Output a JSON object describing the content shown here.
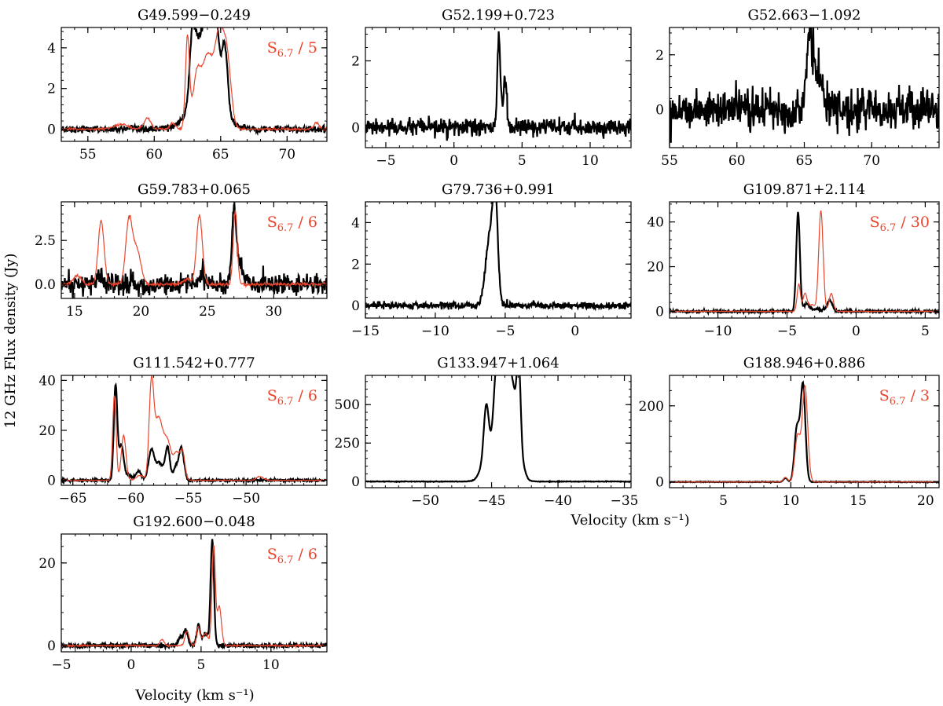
{
  "figure": {
    "ylabel": "12 GHz Flux density (Jy)",
    "xlabel": "Velocity (km s⁻¹)",
    "series_colors": {
      "spec12": "#000000",
      "spec67": "#e8452c"
    }
  },
  "chart_data": [
    {
      "type": "line",
      "title": "G49.599−0.249",
      "xlim": [
        53,
        73
      ],
      "ylim": [
        -0.6,
        5.0
      ],
      "xticks": [
        55,
        60,
        65,
        70
      ],
      "xtick_labels": [
        "55",
        "60",
        "65",
        "70"
      ],
      "yticks": [
        0,
        2,
        4
      ],
      "ytick_labels": [
        "0",
        "2",
        "4"
      ],
      "annotation": {
        "base": "S",
        "sub": "6.7",
        "rest": " / 5"
      },
      "series": [
        {
          "name": "12.2 GHz",
          "color": "#000000",
          "noise": 0.08,
          "baseline": 0,
          "peaks": [
            [
              62.9,
              3.7,
              0.22
            ],
            [
              63.5,
              2.6,
              0.3
            ],
            [
              64.1,
              4.5,
              0.25
            ],
            [
              64.6,
              4.3,
              0.25
            ],
            [
              65.3,
              3.3,
              0.22
            ],
            [
              63.9,
              2.0,
              1.1
            ]
          ]
        },
        {
          "name": "6.7 GHz / 5",
          "color": "#e8452c",
          "noise": 0.03,
          "baseline": 0,
          "peaks": [
            [
              59.5,
              0.55,
              0.25
            ],
            [
              62.5,
              4.5,
              0.15
            ],
            [
              63.2,
              2.5,
              0.3
            ],
            [
              64.0,
              3.5,
              0.4
            ],
            [
              64.9,
              4.4,
              0.35
            ],
            [
              65.5,
              3.0,
              0.3
            ],
            [
              57.5,
              0.25,
              0.5
            ],
            [
              61.4,
              0.3,
              0.2
            ],
            [
              72.2,
              0.3,
              0.2
            ]
          ]
        }
      ]
    },
    {
      "type": "line",
      "title": "G52.199+0.723",
      "xlim": [
        -6.5,
        13
      ],
      "ylim": [
        -0.6,
        3.0
      ],
      "xticks": [
        -5,
        0,
        5,
        10
      ],
      "xtick_labels": [
        "−5",
        "0",
        "5",
        "10"
      ],
      "yticks": [
        0,
        2
      ],
      "ytick_labels": [
        "0",
        "2"
      ],
      "series": [
        {
          "name": "12.2 GHz",
          "color": "#000000",
          "noise": 0.12,
          "baseline": 0,
          "peaks": [
            [
              3.3,
              2.6,
              0.12
            ],
            [
              3.75,
              1.5,
              0.12
            ]
          ]
        }
      ]
    },
    {
      "type": "line",
      "title": "G52.663−1.092",
      "xlim": [
        55,
        75
      ],
      "ylim": [
        -1.4,
        3.0
      ],
      "xticks": [
        55,
        60,
        65,
        70
      ],
      "xtick_labels": [
        "55",
        "60",
        "65",
        "70"
      ],
      "yticks": [
        0,
        2
      ],
      "ytick_labels": [
        "0",
        "2"
      ],
      "series": [
        {
          "name": "12.2 GHz",
          "color": "#000000",
          "noise": 0.35,
          "baseline": 0,
          "peaks": [
            [
              65.4,
              2.3,
              0.25
            ],
            [
              66.0,
              1.3,
              0.3
            ]
          ]
        }
      ]
    },
    {
      "type": "line",
      "title": "G59.783+0.065",
      "xlim": [
        14,
        34
      ],
      "ylim": [
        -0.8,
        4.7
      ],
      "xticks": [
        15,
        20,
        25,
        30
      ],
      "xtick_labels": [
        "15",
        "20",
        "25",
        "30"
      ],
      "yticks": [
        0,
        2.5
      ],
      "ytick_labels": [
        "0.0",
        "2.5"
      ],
      "annotation": {
        "base": "S",
        "sub": "6.7",
        "rest": " / 6"
      },
      "series": [
        {
          "name": "12.2 GHz",
          "color": "#000000",
          "noise": 0.3,
          "baseline": 0,
          "peaks": [
            [
              27.0,
              3.9,
              0.15
            ],
            [
              27.4,
              1.2,
              0.3
            ],
            [
              16.9,
              0.6,
              0.2
            ],
            [
              24.6,
              0.5,
              0.2
            ]
          ]
        },
        {
          "name": "6.7 GHz / 6",
          "color": "#e8452c",
          "noise": 0.05,
          "baseline": 0,
          "peaks": [
            [
              17.0,
              3.6,
              0.22
            ],
            [
              19.1,
              3.6,
              0.25
            ],
            [
              19.7,
              1.9,
              0.3
            ],
            [
              24.4,
              3.9,
              0.22
            ],
            [
              27.1,
              4.2,
              0.15
            ],
            [
              15.2,
              0.5,
              0.3
            ],
            [
              23.5,
              0.3,
              0.3
            ]
          ]
        }
      ]
    },
    {
      "type": "line",
      "title": "G79.736+0.991",
      "xlim": [
        -15,
        4
      ],
      "ylim": [
        -0.6,
        5.0
      ],
      "xticks": [
        -15,
        -10,
        -5,
        0
      ],
      "xtick_labels": [
        "−15",
        "−10",
        "−5",
        "0"
      ],
      "yticks": [
        0,
        2,
        4
      ],
      "ytick_labels": [
        "0",
        "2",
        "4"
      ],
      "series": [
        {
          "name": "12.2 GHz",
          "color": "#000000",
          "noise": 0.08,
          "baseline": 0,
          "peaks": [
            [
              -5.7,
              4.4,
              0.18
            ],
            [
              -6.1,
              3.3,
              0.3
            ]
          ]
        }
      ]
    },
    {
      "type": "line",
      "title": "G109.871+2.114",
      "xlim": [
        -13.5,
        6
      ],
      "ylim": [
        -3,
        49
      ],
      "xticks": [
        -10,
        -5,
        0,
        5
      ],
      "xtick_labels": [
        "−10",
        "−5",
        "0",
        "5"
      ],
      "yticks": [
        0,
        20,
        40
      ],
      "ytick_labels": [
        "0",
        "20",
        "40"
      ],
      "annotation": {
        "base": "S",
        "sub": "6.7",
        "rest": " / 30"
      },
      "series": [
        {
          "name": "12.2 GHz",
          "color": "#000000",
          "noise": 0.3,
          "baseline": 0,
          "peaks": [
            [
              -4.2,
              44.5,
              0.13
            ],
            [
              -3.6,
              3.5,
              0.2
            ],
            [
              -1.9,
              5.0,
              0.18
            ],
            [
              -2.8,
              1.0,
              0.3
            ]
          ]
        },
        {
          "name": "6.7 GHz / 30",
          "color": "#e8452c",
          "noise": 0.1,
          "baseline": 0,
          "peaks": [
            [
              -2.55,
              45.0,
              0.16
            ],
            [
              -4.15,
              12.0,
              0.12
            ],
            [
              -3.7,
              8.0,
              0.15
            ],
            [
              -1.8,
              8.0,
              0.15
            ],
            [
              -3.2,
              3.0,
              0.2
            ]
          ]
        }
      ]
    },
    {
      "type": "line",
      "title": "G111.542+0.777",
      "xlim": [
        -66,
        -43
      ],
      "ylim": [
        -2,
        42
      ],
      "xticks": [
        -65,
        -60,
        -55,
        -50
      ],
      "xtick_labels": [
        "−65",
        "−60",
        "−55",
        "−50"
      ],
      "yticks": [
        0,
        20,
        40
      ],
      "ytick_labels": [
        "0",
        "20",
        "40"
      ],
      "annotation": {
        "base": "S",
        "sub": "6.7",
        "rest": " / 6"
      },
      "series": [
        {
          "name": "12.2 GHz",
          "color": "#000000",
          "noise": 0.25,
          "baseline": 0,
          "peaks": [
            [
              -61.3,
              38,
              0.15
            ],
            [
              -60.8,
              14,
              0.2
            ],
            [
              -59.3,
              3.5,
              0.25
            ],
            [
              -58.2,
              12,
              0.25
            ],
            [
              -57.5,
              7,
              0.3
            ],
            [
              -56.8,
              13,
              0.2
            ],
            [
              -56.1,
              5,
              0.2
            ],
            [
              -55.6,
              13,
              0.22
            ],
            [
              -60.2,
              2,
              0.3
            ]
          ]
        },
        {
          "name": "6.7 GHz / 6",
          "color": "#e8452c",
          "noise": 0.1,
          "baseline": 0,
          "peaks": [
            [
              -61.4,
              34,
              0.15
            ],
            [
              -60.6,
              18,
              0.2
            ],
            [
              -58.2,
              36,
              0.2
            ],
            [
              -57.6,
              24,
              0.35
            ],
            [
              -56.8,
              15,
              0.35
            ],
            [
              -56.0,
              10,
              0.25
            ],
            [
              -55.5,
              11,
              0.2
            ],
            [
              -48.8,
              1.5,
              0.3
            ],
            [
              -59.2,
              2,
              0.3
            ]
          ]
        }
      ]
    },
    {
      "type": "line",
      "title": "G133.947+1.064",
      "xlim": [
        -54.5,
        -34.5
      ],
      "ylim": [
        -40,
        690
      ],
      "xticks": [
        -50,
        -45,
        -40,
        -35
      ],
      "xtick_labels": [
        "−50",
        "−45",
        "−40",
        "−35"
      ],
      "yticks": [
        0,
        250,
        500
      ],
      "ytick_labels": [
        "0",
        "250",
        "500"
      ],
      "series": [
        {
          "name": "12.2 GHz",
          "color": "#000000",
          "noise": 1.0,
          "baseline": 0,
          "peaks": [
            [
              -45.4,
              420,
              0.2
            ],
            [
              -44.6,
              560,
              0.25
            ],
            [
              -44.0,
              530,
              0.3
            ],
            [
              -43.4,
              470,
              0.3
            ],
            [
              -42.95,
              590,
              0.15
            ],
            [
              -42.6,
              60,
              0.2
            ],
            [
              -45.9,
              30,
              0.2
            ],
            [
              -44.3,
              200,
              0.8
            ]
          ]
        }
      ]
    },
    {
      "type": "line",
      "title": "G188.946+0.886",
      "xlim": [
        1,
        21
      ],
      "ylim": [
        -15,
        280
      ],
      "xticks": [
        5,
        10,
        15,
        20
      ],
      "xtick_labels": [
        "5",
        "10",
        "15",
        "20"
      ],
      "yticks": [
        0,
        200
      ],
      "ytick_labels": [
        "0",
        "200"
      ],
      "annotation": {
        "base": "S",
        "sub": "6.7",
        "rest": " / 3"
      },
      "series": [
        {
          "name": "12.2 GHz",
          "color": "#000000",
          "noise": 0.5,
          "baseline": 0,
          "peaks": [
            [
              10.9,
              255,
              0.18
            ],
            [
              10.45,
              140,
              0.18
            ],
            [
              9.6,
              10,
              0.15
            ]
          ]
        },
        {
          "name": "6.7 GHz / 3",
          "color": "#e8452c",
          "noise": 0.3,
          "baseline": 0,
          "peaks": [
            [
              11.05,
              250,
              0.2
            ],
            [
              10.5,
              120,
              0.2
            ],
            [
              9.6,
              12,
              0.15
            ]
          ]
        }
      ]
    },
    {
      "type": "line",
      "title": "G192.600−0.048",
      "xlim": [
        -5,
        14
      ],
      "ylim": [
        -1.5,
        27
      ],
      "xticks": [
        -5,
        0,
        5,
        10
      ],
      "xtick_labels": [
        "−5",
        "0",
        "5",
        "10"
      ],
      "yticks": [
        0,
        20
      ],
      "ytick_labels": [
        "0",
        "20"
      ],
      "annotation": {
        "base": "S",
        "sub": "6.7",
        "rest": " / 6"
      },
      "series": [
        {
          "name": "12.2 GHz",
          "color": "#000000",
          "noise": 0.25,
          "baseline": 0,
          "peaks": [
            [
              5.8,
              25.5,
              0.12
            ],
            [
              3.9,
              3.8,
              0.15
            ],
            [
              4.8,
              5.0,
              0.12
            ],
            [
              5.3,
              3.0,
              0.2
            ],
            [
              3.5,
              2.0,
              0.15
            ]
          ]
        },
        {
          "name": "6.7 GHz / 6",
          "color": "#e8452c",
          "noise": 0.1,
          "baseline": 0,
          "peaks": [
            [
              5.9,
              24.0,
              0.12
            ],
            [
              6.3,
              9.5,
              0.15
            ],
            [
              4.8,
              4.5,
              0.12
            ],
            [
              4.0,
              3.5,
              0.15
            ],
            [
              2.2,
              1.5,
              0.15
            ],
            [
              5.3,
              3.0,
              0.2
            ]
          ]
        }
      ]
    }
  ]
}
